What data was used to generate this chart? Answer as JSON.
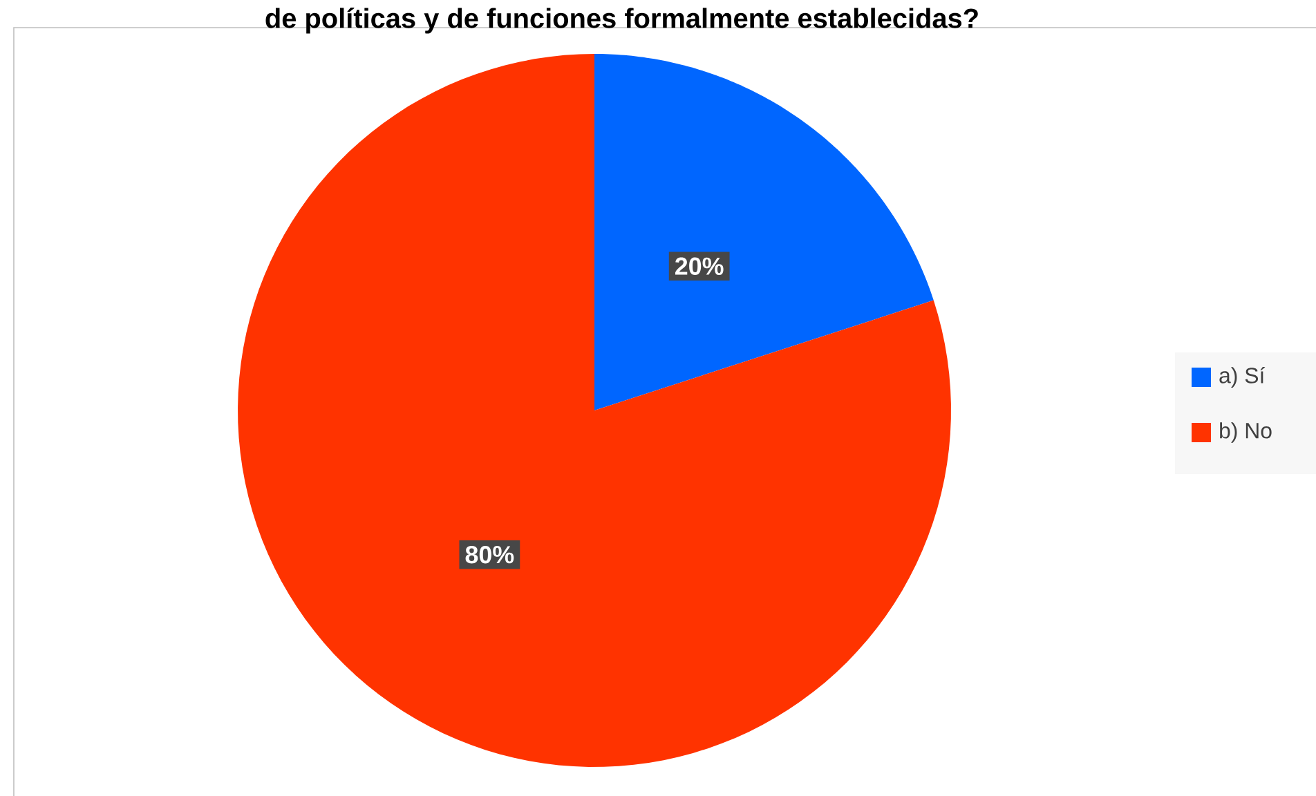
{
  "chart_data": {
    "type": "pie",
    "title": "de políticas y de funciones formalmente establecidas?",
    "categories": [
      "a) Sí",
      "b) No"
    ],
    "values": [
      20,
      80
    ],
    "colors": [
      "#0066ff",
      "#ff3300"
    ],
    "value_labels": [
      "20%",
      "80%"
    ],
    "legend": "right"
  }
}
